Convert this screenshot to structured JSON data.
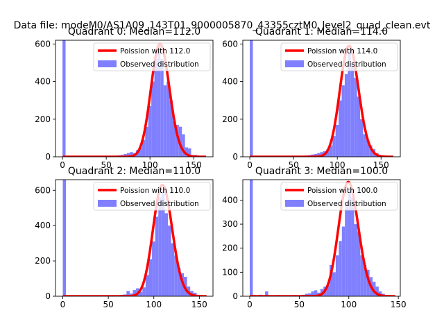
{
  "figure": {
    "suptitle": "Data file: modeM0/AS1A09_143T01_9000005870_43355cztM0_level2_quad_clean.evt"
  },
  "chart_data": [
    {
      "type": "bar",
      "title": "Quadrant 0: Median=112.0",
      "xlabel": "",
      "ylabel": "",
      "xlim": [
        -8,
        172
      ],
      "ylim": [
        0,
        620
      ],
      "xticks": [
        0,
        50,
        100,
        150
      ],
      "yticks": [
        0,
        200,
        400,
        600
      ],
      "grid": false,
      "legend": {
        "loc": "upper right",
        "entries": [
          {
            "label": "Poission with 112.0",
            "color": "#ff0000",
            "kind": "line"
          },
          {
            "label": "Observed distribution",
            "color": "#8080ff",
            "kind": "patch"
          }
        ]
      },
      "histogram": {
        "name": "Observed distribution",
        "color": "#8080ff",
        "bin_width": 3.5,
        "bin_left": [
          0,
          3.5,
          7,
          10.5,
          14,
          17.5,
          21,
          24.5,
          28,
          31.5,
          35,
          38.5,
          42,
          45.5,
          49,
          52.5,
          56,
          59.5,
          63,
          66.5,
          70,
          73.5,
          77,
          80.5,
          84,
          87.5,
          91,
          94.5,
          98,
          101.5,
          105,
          108.5,
          112,
          115.5,
          119,
          122.5,
          126,
          129.5,
          133,
          136.5,
          140,
          143.5,
          147,
          150.5,
          154,
          157.5,
          161,
          164.5
        ],
        "values": [
          620,
          5,
          2,
          2,
          2,
          3,
          2,
          3,
          2,
          2,
          3,
          2,
          3,
          4,
          3,
          4,
          5,
          6,
          8,
          10,
          15,
          20,
          25,
          20,
          35,
          50,
          90,
          160,
          270,
          400,
          520,
          600,
          520,
          380,
          400,
          300,
          190,
          170,
          160,
          120,
          50,
          45,
          10,
          10,
          4,
          2,
          1,
          0
        ]
      },
      "poisson": {
        "name": "Poission with 112.0",
        "mean": 112.0,
        "scale": 600,
        "x_range": [
          0,
          164
        ]
      }
    },
    {
      "type": "bar",
      "title": "Quadrant 1: Median=114.0",
      "xlabel": "",
      "ylabel": "",
      "xlim": [
        -8,
        172
      ],
      "ylim": [
        0,
        620
      ],
      "xticks": [
        0,
        50,
        100,
        150
      ],
      "yticks": [
        0,
        200,
        400,
        600
      ],
      "grid": false,
      "legend": {
        "loc": "upper right",
        "entries": [
          {
            "label": "Poission with 114.0",
            "color": "#ff0000",
            "kind": "line"
          },
          {
            "label": "Observed distribution",
            "color": "#8080ff",
            "kind": "patch"
          }
        ]
      },
      "histogram": {
        "name": "Observed distribution",
        "color": "#8080ff",
        "bin_width": 3.5,
        "bin_left": [
          0,
          3.5,
          7,
          10.5,
          14,
          17.5,
          21,
          24.5,
          28,
          31.5,
          35,
          38.5,
          42,
          45.5,
          49,
          52.5,
          56,
          59.5,
          63,
          66.5,
          70,
          73.5,
          77,
          80.5,
          84,
          87.5,
          91,
          94.5,
          98,
          101.5,
          105,
          108.5,
          112,
          115.5,
          119,
          122.5,
          126,
          129.5,
          133,
          136.5,
          140,
          143.5,
          147,
          150.5,
          154,
          157.5,
          161,
          164.5
        ],
        "values": [
          620,
          4,
          2,
          2,
          3,
          2,
          2,
          3,
          2,
          2,
          3,
          3,
          2,
          4,
          3,
          4,
          4,
          5,
          7,
          9,
          12,
          15,
          20,
          25,
          30,
          40,
          60,
          110,
          170,
          300,
          380,
          440,
          560,
          500,
          420,
          320,
          200,
          120,
          90,
          60,
          40,
          20,
          8,
          5,
          3,
          2,
          1,
          0
        ]
      },
      "poisson": {
        "name": "Poission with 114.0",
        "mean": 114.0,
        "scale": 590,
        "x_range": [
          0,
          164
        ]
      }
    },
    {
      "type": "bar",
      "title": "Quadrant 2: Median=110.0",
      "xlabel": "",
      "ylabel": "",
      "xlim": [
        -8,
        165
      ],
      "ylim": [
        0,
        660
      ],
      "xticks": [
        0,
        50,
        100,
        150
      ],
      "yticks": [
        0,
        200,
        400,
        600
      ],
      "grid": false,
      "legend": {
        "loc": "upper right",
        "entries": [
          {
            "label": "Poission with 110.0",
            "color": "#ff0000",
            "kind": "line"
          },
          {
            "label": "Observed distribution",
            "color": "#8080ff",
            "kind": "patch"
          }
        ]
      },
      "histogram": {
        "name": "Observed distribution",
        "color": "#8080ff",
        "bin_width": 3.5,
        "bin_left": [
          0,
          3.5,
          7,
          10.5,
          14,
          17.5,
          21,
          24.5,
          28,
          31.5,
          35,
          38.5,
          42,
          45.5,
          49,
          52.5,
          56,
          59.5,
          63,
          66.5,
          70,
          73.5,
          77,
          80.5,
          84,
          87.5,
          91,
          94.5,
          98,
          101.5,
          105,
          108.5,
          112,
          115.5,
          119,
          122.5,
          126,
          129.5,
          133,
          136.5,
          140,
          143.5,
          147,
          150.5,
          154
        ],
        "values": [
          660,
          4,
          2,
          3,
          2,
          2,
          3,
          2,
          3,
          2,
          2,
          3,
          2,
          3,
          4,
          4,
          5,
          6,
          8,
          10,
          30,
          15,
          35,
          45,
          25,
          50,
          120,
          210,
          310,
          450,
          560,
          600,
          470,
          400,
          300,
          230,
          160,
          130,
          110,
          55,
          30,
          20,
          8,
          4,
          2
        ]
      },
      "poisson": {
        "name": "Poission with 110.0",
        "mean": 110.0,
        "scale": 630,
        "x_range": [
          0,
          158
        ]
      }
    },
    {
      "type": "bar",
      "title": "Quadrant 3: Median=100.0",
      "xlabel": "",
      "ylabel": "",
      "xlim": [
        -7,
        152
      ],
      "ylim": [
        0,
        485
      ],
      "xticks": [
        0,
        50,
        100,
        150
      ],
      "yticks": [
        0,
        100,
        200,
        300,
        400
      ],
      "grid": false,
      "legend": {
        "loc": "upper right",
        "entries": [
          {
            "label": "Poission with 100.0",
            "color": "#ff0000",
            "kind": "line"
          },
          {
            "label": "Observed distribution",
            "color": "#8080ff",
            "kind": "patch"
          }
        ]
      },
      "histogram": {
        "name": "Observed distribution",
        "color": "#8080ff",
        "bin_width": 3.1,
        "bin_left": [
          0,
          3.1,
          6.2,
          9.3,
          12.4,
          15.5,
          18.6,
          21.7,
          24.8,
          27.9,
          31,
          34.1,
          37.2,
          40.3,
          43.4,
          46.5,
          49.6,
          52.7,
          55.8,
          58.9,
          62,
          65.1,
          68.2,
          71.3,
          74.4,
          77.5,
          80.6,
          83.7,
          86.8,
          89.9,
          93,
          96.1,
          99.2,
          102.3,
          105.4,
          108.5,
          111.6,
          114.7,
          117.8,
          120.9,
          124,
          127.1,
          130.2,
          133.3,
          136.4,
          139.5
        ],
        "values": [
          485,
          5,
          3,
          6,
          3,
          20,
          3,
          4,
          3,
          5,
          3,
          2,
          3,
          4,
          5,
          3,
          4,
          6,
          10,
          12,
          20,
          25,
          15,
          30,
          40,
          45,
          130,
          100,
          170,
          230,
          290,
          390,
          440,
          410,
          300,
          270,
          170,
          130,
          110,
          80,
          60,
          40,
          20,
          10,
          5,
          3
        ]
      },
      "poisson": {
        "name": "Poission with 100.0",
        "mean": 100.0,
        "scale": 475,
        "x_range": [
          0,
          147
        ]
      }
    }
  ]
}
